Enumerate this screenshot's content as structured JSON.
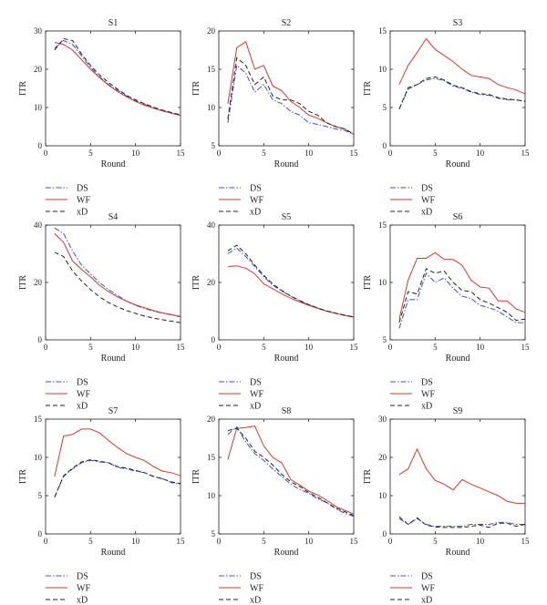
{
  "colors": {
    "DS": "#3b4fd1",
    "WF": "#d23a2a",
    "xD": "#222222"
  },
  "chart_data": [
    {
      "type": "line",
      "title": "S1",
      "xlabel": "Round",
      "ylabel": "ITR",
      "xlim": [
        0,
        15
      ],
      "ylim": [
        0,
        30
      ],
      "xticks": [
        0,
        5,
        10,
        15
      ],
      "yticks": [
        0,
        10,
        20,
        30
      ],
      "x": [
        1,
        2,
        3,
        4,
        5,
        6,
        7,
        8,
        9,
        10,
        11,
        12,
        13,
        14,
        15
      ],
      "series": [
        {
          "name": "DS",
          "style": "dashdot",
          "values": [
            25.5,
            27.5,
            26.5,
            23.5,
            20.5,
            18,
            16,
            14.5,
            13,
            11.8,
            10.8,
            10,
            9.2,
            8.6,
            8
          ]
        },
        {
          "name": "WF",
          "style": "solid",
          "values": [
            27,
            26.5,
            25,
            22.5,
            20,
            17.8,
            15.8,
            14.2,
            12.8,
            11.6,
            10.6,
            9.8,
            9.1,
            8.5,
            7.9
          ]
        },
        {
          "name": "xD",
          "style": "dashed",
          "values": [
            25,
            28,
            27.5,
            24,
            21,
            18.5,
            16.5,
            14.8,
            13.2,
            12,
            11,
            10.1,
            9.3,
            8.7,
            8.1
          ]
        }
      ],
      "legend": [
        "DS",
        "WF",
        "xD"
      ]
    },
    {
      "type": "line",
      "title": "S2",
      "xlabel": "Round",
      "ylabel": "ITR",
      "xlim": [
        0,
        15
      ],
      "ylim": [
        5,
        20
      ],
      "xticks": [
        0,
        5,
        10,
        15
      ],
      "yticks": [
        5,
        10,
        15,
        20
      ],
      "x": [
        1,
        2,
        3,
        4,
        5,
        6,
        7,
        8,
        9,
        10,
        11,
        12,
        13,
        14,
        15
      ],
      "series": [
        {
          "name": "DS",
          "style": "dashdot",
          "values": [
            8,
            15.5,
            14.5,
            12,
            13,
            11,
            10.5,
            9.5,
            9,
            8,
            7.8,
            7.5,
            7.2,
            7,
            6.5
          ]
        },
        {
          "name": "WF",
          "style": "solid",
          "values": [
            10.5,
            17.8,
            18.6,
            15,
            15.5,
            12.8,
            12.2,
            10.8,
            10,
            9,
            8.6,
            8,
            7.5,
            7.2,
            6.5
          ]
        },
        {
          "name": "xD",
          "style": "dashed",
          "values": [
            8.5,
            16.5,
            15.5,
            13,
            14,
            11.5,
            11,
            11,
            10.5,
            9.5,
            9,
            8,
            7.5,
            7.2,
            6.5
          ]
        }
      ],
      "legend": [
        "DS",
        "WF",
        "xD"
      ]
    },
    {
      "type": "line",
      "title": "S3",
      "xlabel": "Round",
      "ylabel": "ITR",
      "xlim": [
        0,
        15
      ],
      "ylim": [
        0,
        15
      ],
      "xticks": [
        0,
        5,
        10,
        15
      ],
      "yticks": [
        0,
        5,
        10,
        15
      ],
      "x": [
        1,
        2,
        3,
        4,
        5,
        6,
        7,
        8,
        9,
        10,
        11,
        12,
        13,
        14,
        15
      ],
      "series": [
        {
          "name": "DS",
          "style": "dashdot",
          "values": [
            4.8,
            7.4,
            8,
            8.6,
            8.8,
            8.5,
            7.8,
            7.5,
            7,
            6.7,
            6.6,
            6.2,
            6,
            6,
            5.8
          ]
        },
        {
          "name": "WF",
          "style": "solid",
          "values": [
            8,
            10.5,
            12.2,
            14,
            12.6,
            11.8,
            11,
            10,
            9.2,
            9,
            8.8,
            8,
            7.6,
            7.3,
            6.8
          ]
        },
        {
          "name": "xD",
          "style": "dashed",
          "values": [
            4.8,
            7.6,
            8,
            8.8,
            9,
            8.6,
            7.9,
            7.6,
            7.1,
            6.8,
            6.7,
            6.3,
            6.1,
            6,
            5.8
          ]
        }
      ],
      "legend": [
        "DS",
        "WF",
        "xD"
      ]
    },
    {
      "type": "line",
      "title": "S4",
      "xlabel": "Round",
      "ylabel": "ITR",
      "xlim": [
        0,
        15
      ],
      "ylim": [
        0,
        40
      ],
      "xticks": [
        0,
        5,
        10,
        15
      ],
      "yticks": [
        0,
        20,
        40
      ],
      "x": [
        1,
        2,
        3,
        4,
        5,
        6,
        7,
        8,
        9,
        10,
        11,
        12,
        13,
        14,
        15
      ],
      "series": [
        {
          "name": "DS",
          "style": "dashdot",
          "values": [
            39,
            37,
            31,
            26,
            23,
            20,
            17.5,
            15.5,
            13.5,
            12,
            11,
            10,
            9.3,
            8.7,
            8
          ]
        },
        {
          "name": "WF",
          "style": "solid",
          "values": [
            37,
            34,
            27.5,
            24.5,
            22,
            19,
            16.8,
            15,
            13.5,
            12.2,
            11.2,
            10.2,
            9.4,
            8.8,
            8.2
          ]
        },
        {
          "name": "xD",
          "style": "dashed",
          "values": [
            30.5,
            29,
            24,
            20.5,
            17.5,
            15,
            13,
            11.5,
            10.2,
            9.2,
            8.3,
            7.6,
            7,
            6.5,
            6
          ]
        }
      ],
      "legend": [
        "DS",
        "WF",
        "xD"
      ]
    },
    {
      "type": "line",
      "title": "S5",
      "xlabel": "Round",
      "ylabel": "ITR",
      "xlim": [
        0,
        15
      ],
      "ylim": [
        0,
        40
      ],
      "xticks": [
        0,
        5,
        10,
        15
      ],
      "yticks": [
        0,
        20,
        40
      ],
      "x": [
        1,
        2,
        3,
        4,
        5,
        6,
        7,
        8,
        9,
        10,
        11,
        12,
        13,
        14,
        15
      ],
      "series": [
        {
          "name": "DS",
          "style": "dashdot",
          "values": [
            30,
            32,
            29,
            25.5,
            22,
            19,
            17,
            15.2,
            13.6,
            12.2,
            11,
            10,
            9.2,
            8.6,
            8
          ]
        },
        {
          "name": "WF",
          "style": "solid",
          "values": [
            25.5,
            25.8,
            25,
            23,
            19.5,
            17.8,
            16,
            14.5,
            13.2,
            12,
            11,
            10,
            9.2,
            8.5,
            7.9
          ]
        },
        {
          "name": "xD",
          "style": "dashed",
          "values": [
            31,
            33,
            30,
            26,
            22.5,
            19.5,
            17.2,
            15.3,
            13.7,
            12.3,
            11.1,
            10.1,
            9.3,
            8.6,
            8
          ]
        }
      ],
      "legend": [
        "DS",
        "WF",
        "xD"
      ]
    },
    {
      "type": "line",
      "title": "S6",
      "xlabel": "Round",
      "ylabel": "ITR",
      "xlim": [
        0,
        15
      ],
      "ylim": [
        5,
        15
      ],
      "xticks": [
        0,
        5,
        10,
        15
      ],
      "yticks": [
        5,
        10,
        15
      ],
      "x": [
        1,
        2,
        3,
        4,
        5,
        6,
        7,
        8,
        9,
        10,
        11,
        12,
        13,
        14,
        15
      ],
      "series": [
        {
          "name": "DS",
          "style": "dashdot",
          "values": [
            6,
            8.5,
            8.5,
            10.8,
            10,
            10.4,
            9.5,
            8.8,
            8.6,
            8,
            7.8,
            7.5,
            7,
            6.5,
            6.5
          ]
        },
        {
          "name": "WF",
          "style": "solid",
          "values": [
            6.8,
            10.2,
            12.1,
            12.1,
            12.6,
            12,
            12,
            11.5,
            10.2,
            9.6,
            9.5,
            8.4,
            8.4,
            7.7,
            7.4
          ]
        },
        {
          "name": "xD",
          "style": "dashed",
          "values": [
            6.5,
            9.2,
            9,
            11.2,
            10.8,
            11,
            10,
            9.3,
            9.2,
            8.5,
            8.2,
            7.8,
            7.4,
            6.7,
            6.8
          ]
        }
      ],
      "legend": [
        "DS",
        "WF",
        "xD"
      ]
    },
    {
      "type": "line",
      "title": "S7",
      "xlabel": "Round",
      "ylabel": "ITR",
      "xlim": [
        0,
        15
      ],
      "ylim": [
        0,
        15
      ],
      "xticks": [
        0,
        5,
        10,
        15
      ],
      "yticks": [
        0,
        5,
        10,
        15
      ],
      "x": [
        1,
        2,
        3,
        4,
        5,
        6,
        7,
        8,
        9,
        10,
        11,
        12,
        13,
        14,
        15
      ],
      "series": [
        {
          "name": "DS",
          "style": "dashdot",
          "values": [
            4.8,
            7.5,
            8.5,
            9.3,
            9.6,
            9.4,
            9.3,
            8.7,
            8.5,
            8.2,
            8,
            7.5,
            7.2,
            6.7,
            6.5
          ]
        },
        {
          "name": "WF",
          "style": "solid",
          "values": [
            7.5,
            12.8,
            13,
            13.7,
            13.7,
            13.2,
            12.2,
            11.3,
            10.5,
            10,
            9.6,
            8.8,
            8.2,
            8,
            7.6
          ]
        },
        {
          "name": "xD",
          "style": "dashed",
          "values": [
            4.8,
            7.6,
            8.6,
            9.4,
            9.7,
            9.5,
            9.3,
            8.8,
            8.6,
            8.3,
            8,
            7.5,
            7.2,
            6.8,
            6.6
          ]
        }
      ],
      "legend": [
        "DS",
        "WF",
        "xD"
      ]
    },
    {
      "type": "line",
      "title": "S8",
      "xlabel": "Round",
      "ylabel": "ITR",
      "xlim": [
        0,
        15
      ],
      "ylim": [
        5,
        20
      ],
      "xticks": [
        0,
        5,
        10,
        15
      ],
      "yticks": [
        5,
        10,
        15,
        20
      ],
      "x": [
        1,
        2,
        3,
        4,
        5,
        6,
        7,
        8,
        9,
        10,
        11,
        12,
        13,
        14,
        15
      ],
      "series": [
        {
          "name": "DS",
          "style": "dashdot",
          "values": [
            18,
            19,
            17,
            15.5,
            14.6,
            13.5,
            12.5,
            11.5,
            10.8,
            10.3,
            9.6,
            9.1,
            8.3,
            7.7,
            7.3
          ]
        },
        {
          "name": "WF",
          "style": "solid",
          "values": [
            14.7,
            18.8,
            18.9,
            19.1,
            16.5,
            15,
            14.3,
            12.1,
            11.4,
            10.6,
            10.1,
            9.4,
            8.6,
            8.1,
            7.6
          ]
        },
        {
          "name": "xD",
          "style": "dashed",
          "values": [
            18.5,
            18.8,
            17.5,
            15.8,
            15,
            14,
            12.8,
            11.8,
            11.2,
            10.4,
            9.8,
            9.1,
            8.4,
            7.9,
            7.4
          ]
        }
      ],
      "legend": [
        "DS",
        "WF",
        "xD"
      ]
    },
    {
      "type": "line",
      "title": "S9",
      "xlabel": "Round",
      "ylabel": "ITR",
      "xlim": [
        0,
        15
      ],
      "ylim": [
        0,
        30
      ],
      "xticks": [
        0,
        5,
        10,
        15
      ],
      "yticks": [
        0,
        10,
        20,
        30
      ],
      "x": [
        1,
        2,
        3,
        4,
        5,
        6,
        7,
        8,
        9,
        10,
        11,
        12,
        13,
        14,
        15
      ],
      "series": [
        {
          "name": "DS",
          "style": "dashdot",
          "values": [
            4,
            2.5,
            4,
            2.5,
            2,
            2,
            2,
            2,
            2.5,
            2.5,
            2.5,
            3,
            3,
            2.5,
            2.5
          ]
        },
        {
          "name": "WF",
          "style": "solid",
          "values": [
            15.5,
            17,
            22.2,
            17,
            14,
            13,
            11.5,
            14.2,
            13,
            12,
            11,
            10,
            8.5,
            8,
            8
          ]
        },
        {
          "name": "xD",
          "style": "dashed",
          "values": [
            4.5,
            2.5,
            4.2,
            2.3,
            1.8,
            1.7,
            1.7,
            1.7,
            2,
            2.3,
            1.7,
            2.8,
            2.8,
            2,
            2.5
          ]
        }
      ],
      "legend": [
        "DS",
        "WF",
        "xD"
      ]
    }
  ]
}
